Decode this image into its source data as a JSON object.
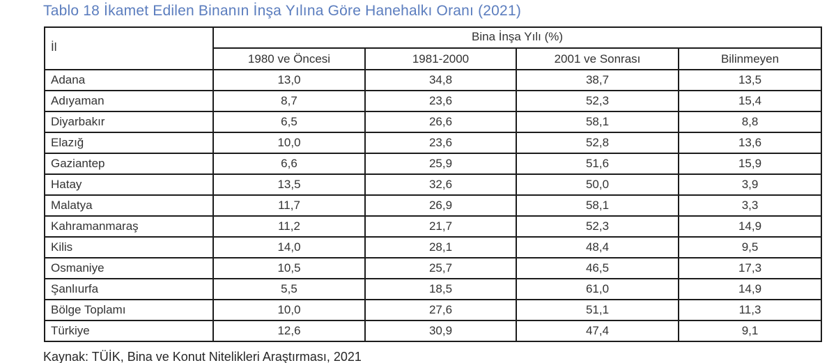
{
  "title": "Tablo 18 İkamet Edilen Binanın İnşa Yılına Göre Hanehalkı Oranı (2021)",
  "colors": {
    "title_accent": "#5b7dbe",
    "table_border": "#1c1c1c",
    "text": "#333333",
    "background": "#ffffff"
  },
  "table": {
    "row_header_label": "İl",
    "group_header": "Bina İnşa Yılı (%)",
    "columns": [
      "1980 ve Öncesi",
      "1981-2000",
      "2001 ve Sonrası",
      "Bilinmeyen"
    ],
    "rows": [
      {
        "il": "Adana",
        "values": [
          "13,0",
          "34,8",
          "38,7",
          "13,5"
        ]
      },
      {
        "il": "Adıyaman",
        "values": [
          "8,7",
          "23,6",
          "52,3",
          "15,4"
        ]
      },
      {
        "il": "Diyarbakır",
        "values": [
          "6,5",
          "26,6",
          "58,1",
          "8,8"
        ]
      },
      {
        "il": "Elazığ",
        "values": [
          "10,0",
          "23,6",
          "52,8",
          "13,6"
        ]
      },
      {
        "il": "Gaziantep",
        "values": [
          "6,6",
          "25,9",
          "51,6",
          "15,9"
        ]
      },
      {
        "il": "Hatay",
        "values": [
          "13,5",
          "32,6",
          "50,0",
          "3,9"
        ]
      },
      {
        "il": "Malatya",
        "values": [
          "11,7",
          "26,9",
          "58,1",
          "3,3"
        ]
      },
      {
        "il": "Kahramanmaraş",
        "values": [
          "11,2",
          "21,7",
          "52,3",
          "14,9"
        ]
      },
      {
        "il": "Kilis",
        "values": [
          "14,0",
          "28,1",
          "48,4",
          "9,5"
        ]
      },
      {
        "il": "Osmaniye",
        "values": [
          "10,5",
          "25,7",
          "46,5",
          "17,3"
        ]
      },
      {
        "il": "Şanlıurfa",
        "values": [
          "5,5",
          "18,5",
          "61,0",
          "14,9"
        ]
      },
      {
        "il": "Bölge Toplamı",
        "values": [
          "10,0",
          "27,6",
          "51,1",
          "11,3"
        ]
      },
      {
        "il": "Türkiye",
        "values": [
          "12,6",
          "30,9",
          "47,4",
          "9,1"
        ]
      }
    ]
  },
  "source": "Kaynak: TÜİK, Bina ve Konut Nitelikleri Araştırması, 2021"
}
